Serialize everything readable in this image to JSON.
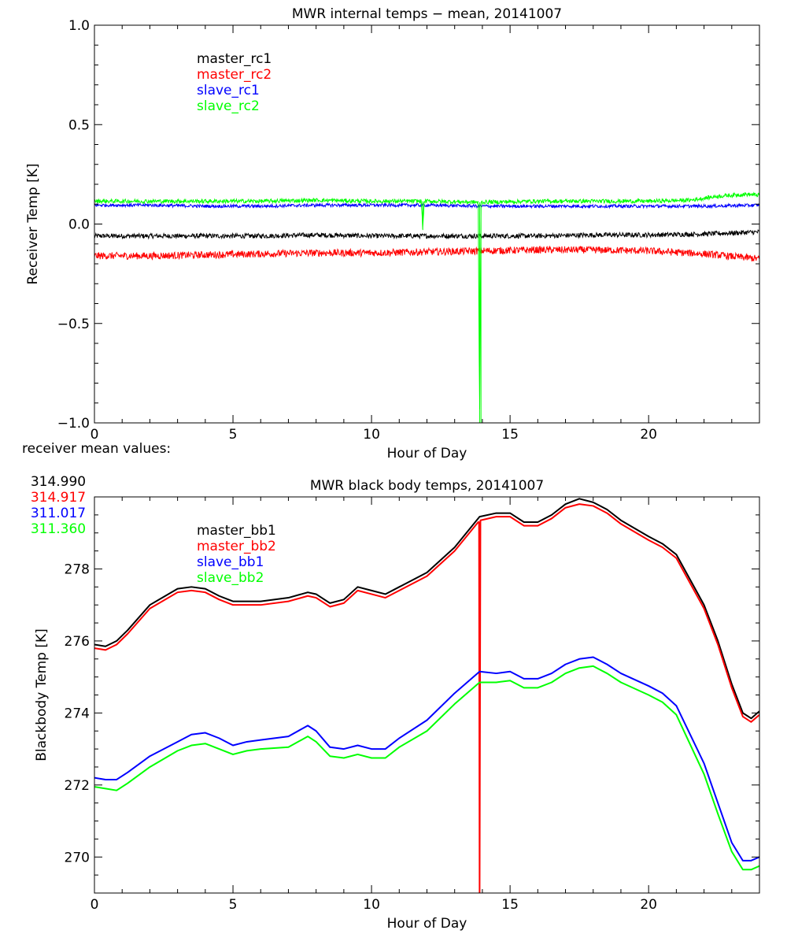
{
  "chart_data": [
    {
      "type": "line",
      "title": "MWR internal temps − mean, 20141007",
      "xlabel": "Hour of Day",
      "ylabel": "Receiver Temp [K]",
      "xlim": [
        0,
        24
      ],
      "ylim": [
        -1.0,
        1.0
      ],
      "xticks": [
        0,
        5,
        10,
        15,
        20
      ],
      "yticks": [
        -1.0,
        -0.5,
        0.0,
        0.5,
        1.0
      ],
      "ytick_labels": [
        "−1.0",
        "−0.5",
        "0.0",
        "0.5",
        "1.0"
      ],
      "legend_position": "top-left",
      "series": [
        {
          "name": "master_rc1",
          "color": "#000000",
          "noise": 0.012,
          "x": [
            0,
            2,
            4,
            6,
            8,
            10,
            12,
            14,
            16,
            18,
            20,
            22,
            24
          ],
          "y": [
            -0.06,
            -0.06,
            -0.06,
            -0.06,
            -0.055,
            -0.06,
            -0.06,
            -0.06,
            -0.06,
            -0.055,
            -0.055,
            -0.05,
            -0.04
          ]
        },
        {
          "name": "master_rc2",
          "color": "#ff0000",
          "noise": 0.018,
          "x": [
            0,
            2,
            4,
            6,
            8,
            10,
            12,
            14,
            16,
            18,
            20,
            22,
            24
          ],
          "y": [
            -0.16,
            -0.16,
            -0.155,
            -0.15,
            -0.145,
            -0.145,
            -0.14,
            -0.135,
            -0.13,
            -0.13,
            -0.135,
            -0.15,
            -0.175
          ]
        },
        {
          "name": "slave_rc1",
          "color": "#0000ff",
          "noise": 0.008,
          "x": [
            0,
            2,
            4,
            6,
            8,
            10,
            12,
            14,
            16,
            18,
            20,
            22,
            24
          ],
          "y": [
            0.095,
            0.095,
            0.09,
            0.09,
            0.095,
            0.095,
            0.095,
            0.09,
            0.09,
            0.09,
            0.09,
            0.09,
            0.095
          ]
        },
        {
          "name": "slave_rc2",
          "color": "#00ff00",
          "noise": 0.01,
          "x": [
            0,
            2,
            4,
            6,
            8,
            10,
            11.8,
            11.85,
            11.9,
            12,
            13.85,
            13.9,
            13.95,
            14,
            16,
            18,
            20,
            21.5,
            22.5,
            23.5,
            24
          ],
          "y": [
            0.115,
            0.115,
            0.115,
            0.115,
            0.12,
            0.115,
            0.115,
            -0.03,
            0.115,
            0.115,
            0.11,
            -1.0,
            0.11,
            0.11,
            0.115,
            0.115,
            0.115,
            0.12,
            0.14,
            0.15,
            0.145
          ]
        }
      ]
    },
    {
      "type": "line",
      "title": "MWR black body temps, 20141007",
      "xlabel": "Hour of Day",
      "ylabel": "Blackbody Temp [K]",
      "xlim": [
        0,
        24
      ],
      "ylim": [
        269,
        280
      ],
      "xticks": [
        0,
        5,
        10,
        15,
        20
      ],
      "yticks": [
        270,
        272,
        274,
        276,
        278
      ],
      "legend_position": "top-left",
      "series": [
        {
          "name": "master_bb1",
          "color": "#000000",
          "x": [
            0,
            0.4,
            0.8,
            1.2,
            2,
            3,
            3.5,
            4,
            4.5,
            5,
            5.5,
            6,
            7,
            7.7,
            8,
            8.5,
            9,
            9.5,
            10,
            10.5,
            11,
            12,
            13,
            13.9,
            14.5,
            15,
            15.5,
            16,
            16.5,
            17,
            17.5,
            18,
            18.5,
            19,
            20,
            20.5,
            21,
            22,
            22.5,
            23,
            23.4,
            23.7,
            24
          ],
          "y": [
            275.9,
            275.85,
            276.0,
            276.3,
            277.0,
            277.45,
            277.5,
            277.45,
            277.25,
            277.1,
            277.1,
            277.1,
            277.2,
            277.35,
            277.3,
            277.05,
            277.15,
            277.5,
            277.4,
            277.3,
            277.5,
            277.9,
            278.6,
            279.45,
            279.55,
            279.55,
            279.3,
            279.3,
            279.5,
            279.8,
            279.95,
            279.85,
            279.65,
            279.35,
            278.9,
            278.7,
            278.4,
            277.0,
            276.0,
            274.8,
            274.0,
            273.85,
            274.05
          ]
        },
        {
          "name": "master_bb2",
          "color": "#ff0000",
          "x": [
            0,
            0.4,
            0.8,
            1.2,
            2,
            3,
            3.5,
            4,
            4.5,
            5,
            5.5,
            6,
            7,
            7.7,
            8,
            8.5,
            9,
            9.5,
            10,
            10.5,
            11,
            12,
            13,
            13.85,
            13.88,
            13.9,
            13.93,
            14.5,
            15,
            15.5,
            16,
            16.5,
            17,
            17.5,
            18,
            18.5,
            19,
            20,
            20.5,
            21,
            22,
            22.5,
            23,
            23.4,
            23.7,
            24
          ],
          "y": [
            275.8,
            275.75,
            275.9,
            276.2,
            276.9,
            277.35,
            277.4,
            277.35,
            277.15,
            277.0,
            277.0,
            277.0,
            277.1,
            277.25,
            277.2,
            276.95,
            277.05,
            277.4,
            277.3,
            277.2,
            277.4,
            277.8,
            278.5,
            279.3,
            279.3,
            269.0,
            279.35,
            279.45,
            279.45,
            279.2,
            279.2,
            279.4,
            279.7,
            279.8,
            279.75,
            279.55,
            279.25,
            278.8,
            278.6,
            278.3,
            276.9,
            275.9,
            274.7,
            273.9,
            273.75,
            273.95
          ]
        },
        {
          "name": "slave_bb1",
          "color": "#0000ff",
          "x": [
            0,
            0.4,
            0.8,
            1.2,
            2,
            3,
            3.5,
            4,
            4.5,
            5,
            5.5,
            6,
            7,
            7.7,
            8,
            8.5,
            9,
            9.5,
            10,
            10.5,
            11,
            12,
            13,
            13.9,
            14.5,
            15,
            15.5,
            16,
            16.5,
            17,
            17.5,
            18,
            18.5,
            19,
            20,
            20.5,
            21,
            22,
            22.5,
            23,
            23.4,
            23.7,
            24
          ],
          "y": [
            272.2,
            272.15,
            272.15,
            272.35,
            272.8,
            273.2,
            273.4,
            273.45,
            273.3,
            273.1,
            273.2,
            273.25,
            273.35,
            273.65,
            273.5,
            273.05,
            273.0,
            273.1,
            273.0,
            273.0,
            273.3,
            273.8,
            274.55,
            275.15,
            275.1,
            275.15,
            274.95,
            274.95,
            275.1,
            275.35,
            275.5,
            275.55,
            275.35,
            275.1,
            274.75,
            274.55,
            274.2,
            272.6,
            271.5,
            270.4,
            269.9,
            269.9,
            270.0
          ]
        },
        {
          "name": "slave_bb2",
          "color": "#00ff00",
          "x": [
            0,
            0.4,
            0.8,
            1.2,
            2,
            3,
            3.5,
            4,
            4.5,
            5,
            5.5,
            6,
            7,
            7.7,
            8,
            8.5,
            9,
            9.5,
            10,
            10.5,
            11,
            12,
            13,
            13.9,
            14.5,
            15,
            15.5,
            16,
            16.5,
            17,
            17.5,
            18,
            18.5,
            19,
            20,
            20.5,
            21,
            22,
            22.5,
            23,
            23.4,
            23.7,
            24
          ],
          "y": [
            271.95,
            271.9,
            271.85,
            272.05,
            272.5,
            272.95,
            273.1,
            273.15,
            273.0,
            272.85,
            272.95,
            273.0,
            273.05,
            273.35,
            273.2,
            272.8,
            272.75,
            272.85,
            272.75,
            272.75,
            273.05,
            273.5,
            274.25,
            274.85,
            274.85,
            274.9,
            274.7,
            274.7,
            274.85,
            275.1,
            275.25,
            275.3,
            275.1,
            274.85,
            274.5,
            274.3,
            273.95,
            272.3,
            271.2,
            270.15,
            269.65,
            269.65,
            269.75
          ]
        }
      ]
    }
  ],
  "receiver_means": {
    "caption": "receiver mean values:",
    "values": [
      {
        "text": "314.990",
        "color": "#000000"
      },
      {
        "text": "314.917",
        "color": "#ff0000"
      },
      {
        "text": "311.017",
        "color": "#0000ff"
      },
      {
        "text": "311.360",
        "color": "#00ff00"
      }
    ]
  }
}
